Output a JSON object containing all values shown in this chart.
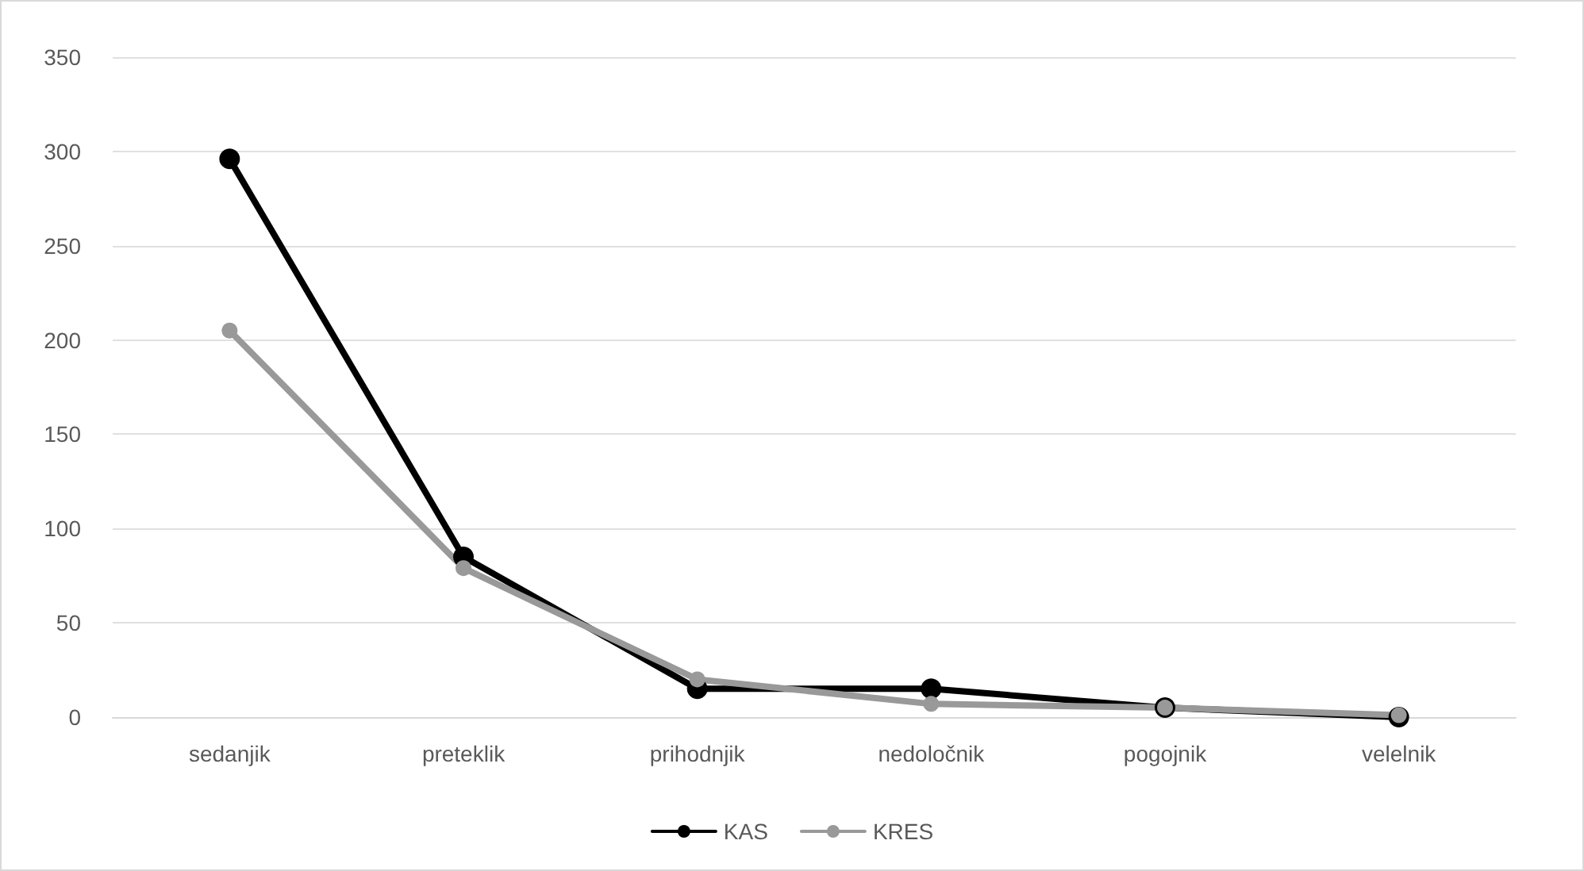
{
  "chart_data": {
    "type": "line",
    "categories": [
      "sedanjik",
      "preteklik",
      "prihodnjik",
      "nedoločnik",
      "pogojnik",
      "velelnik"
    ],
    "series": [
      {
        "name": "KAS",
        "color": "#000000",
        "values": [
          296,
          85,
          15,
          15,
          5,
          0
        ]
      },
      {
        "name": "KRES",
        "color": "#999999",
        "values": [
          205,
          79,
          20,
          7,
          5,
          1
        ]
      }
    ],
    "ylim": [
      0,
      350
    ],
    "yticks": [
      0,
      50,
      100,
      150,
      200,
      250,
      300,
      350
    ],
    "grid": "y",
    "legend": "bottom",
    "marker": "circle",
    "line_style": "solid"
  }
}
